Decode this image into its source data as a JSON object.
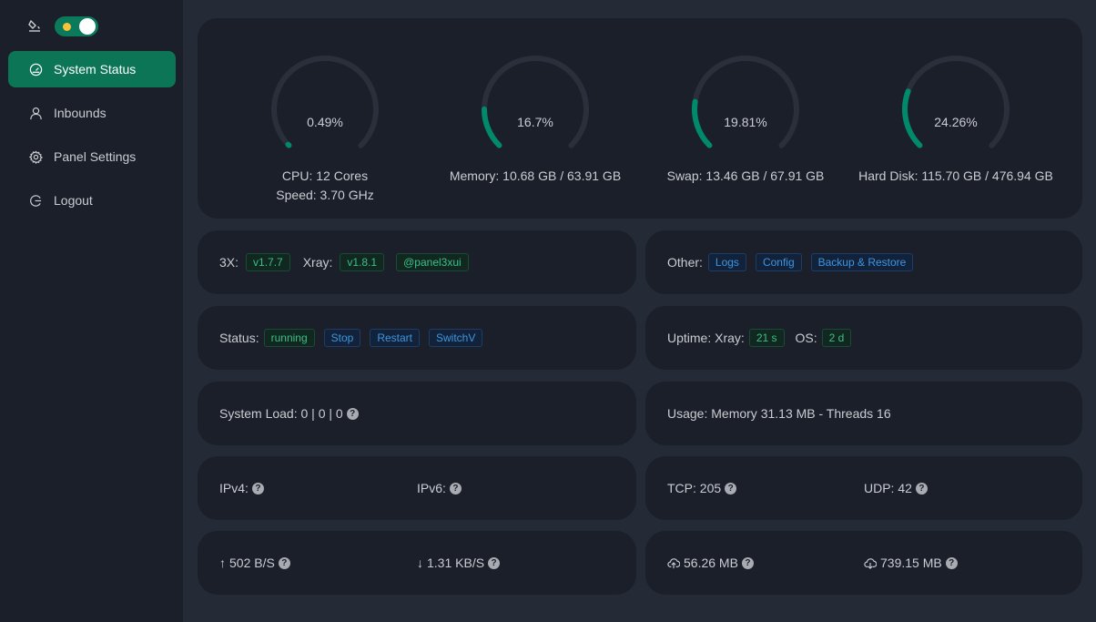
{
  "sidebar": {
    "items": [
      {
        "label": "System Status",
        "icon": "dashboard-icon",
        "active": true
      },
      {
        "label": "Inbounds",
        "icon": "user-icon"
      },
      {
        "label": "Panel Settings",
        "icon": "gear-icon"
      },
      {
        "label": "Logout",
        "icon": "logout-icon"
      }
    ],
    "theme_toggle": {
      "on": true
    }
  },
  "gauges": [
    {
      "percent_text": "0.49%",
      "value": 0.49,
      "line1": "CPU: 12 Cores",
      "line2": "Speed: 3.70 GHz"
    },
    {
      "percent_text": "16.7%",
      "value": 16.7,
      "line1": "Memory: 10.68 GB / 63.91 GB"
    },
    {
      "percent_text": "19.81%",
      "value": 19.81,
      "line1": "Swap: 13.46 GB / 67.91 GB"
    },
    {
      "percent_text": "24.26%",
      "value": 24.26,
      "line1": "Hard Disk: 115.70 GB / 476.94 GB"
    }
  ],
  "versions": {
    "x3_label": "3X:",
    "x3": "v1.7.7",
    "xray_label": "Xray:",
    "xray": "v1.8.1",
    "channel": "@panel3xui"
  },
  "other": {
    "label": "Other:",
    "logs": "Logs",
    "config": "Config",
    "backup": "Backup & Restore"
  },
  "status": {
    "label": "Status:",
    "state": "running",
    "stop": "Stop",
    "restart": "Restart",
    "switch": "SwitchV"
  },
  "uptime": {
    "label": "Uptime: Xray:",
    "xray": "21 s",
    "os_label": "OS:",
    "os": "2 d"
  },
  "load": {
    "text": "System Load: 0 | 0 | 0"
  },
  "usage": {
    "text": "Usage: Memory 31.13 MB - Threads 16"
  },
  "ip": {
    "ipv4": "IPv4:",
    "ipv6": "IPv6:"
  },
  "conn": {
    "tcp": "TCP: 205",
    "udp": "UDP: 42"
  },
  "speed": {
    "up": "502 B/S",
    "down": "1.31 KB/S"
  },
  "traffic": {
    "sent": "56.26 MB",
    "received": "739.15 MB"
  },
  "colors": {
    "accent": "#0b7555",
    "gauge": "#00896a"
  }
}
